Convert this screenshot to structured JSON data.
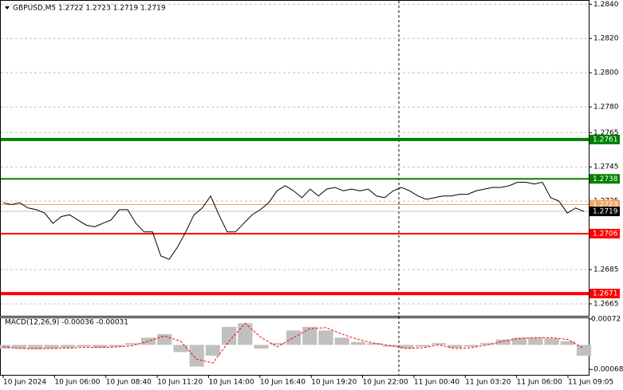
{
  "chart_data": {
    "type": "line",
    "title": "GBPUSD,M5  1.2722 1.2723 1.2719 1.2719",
    "ylim": [
      1.2658,
      1.2842
    ],
    "yticks": [
      {
        "value": 1.284,
        "label": "1.2840"
      },
      {
        "value": 1.282,
        "label": "1.2820"
      },
      {
        "value": 1.28,
        "label": "1.2800"
      },
      {
        "value": 1.278,
        "label": "1.2780"
      },
      {
        "value": 1.2765,
        "label": "1.2765"
      },
      {
        "value": 1.2745,
        "label": "1.2745"
      },
      {
        "value": 1.2725,
        "label": "1.2725"
      },
      {
        "value": 1.2685,
        "label": "1.2685"
      },
      {
        "value": 1.2665,
        "label": "1.2665"
      }
    ],
    "grid": true,
    "xlabels": [
      "10 Jun 2024",
      "10 Jun 06:00",
      "10 Jun 08:40",
      "10 Jun 11:20",
      "10 Jun 14:00",
      "10 Jun 16:40",
      "10 Jun 19:20",
      "10 Jun 22:00",
      "11 Jun 00:40",
      "11 Jun 03:20",
      "11 Jun 06:00",
      "11 Jun 09:05"
    ],
    "series": [
      {
        "name": "GBPUSD",
        "color": "#000000",
        "values": [
          1.2724,
          1.2723,
          1.2724,
          1.2721,
          1.272,
          1.2718,
          1.2712,
          1.2716,
          1.2717,
          1.2714,
          1.2711,
          1.271,
          1.2712,
          1.2714,
          1.272,
          1.272,
          1.2712,
          1.2707,
          1.2707,
          1.2693,
          1.2691,
          1.2698,
          1.2707,
          1.2717,
          1.2721,
          1.2728,
          1.2717,
          1.2707,
          1.2707,
          1.2712,
          1.2717,
          1.272,
          1.2724,
          1.2731,
          1.2734,
          1.2731,
          1.2727,
          1.2732,
          1.2728,
          1.2732,
          1.2733,
          1.2731,
          1.2732,
          1.2731,
          1.2732,
          1.2728,
          1.2727,
          1.2731,
          1.2733,
          1.2731,
          1.2728,
          1.2726,
          1.2727,
          1.2728,
          1.2728,
          1.2729,
          1.2729,
          1.2731,
          1.2732,
          1.2733,
          1.2733,
          1.2734,
          1.2736,
          1.2736,
          1.2735,
          1.2736,
          1.2727,
          1.2725,
          1.2718,
          1.2721,
          1.2719
        ]
      }
    ],
    "levels": [
      {
        "value": 1.2761,
        "color": "#008000",
        "width": 4
      },
      {
        "value": 1.2738,
        "color": "#008000",
        "width": 2
      },
      {
        "value": 1.2723,
        "color": "#f4a460",
        "width": 1
      },
      {
        "value": 1.2719,
        "color": "#c0c0c0",
        "width": 1
      },
      {
        "value": 1.2706,
        "color": "#ff0000",
        "width": 2
      },
      {
        "value": 1.2671,
        "color": "#ff0000",
        "width": 4
      }
    ],
    "macd": {
      "label": "MACD(12,26,9) -0.00036 -0.00031",
      "y2lim": [
        -0.00083,
        0.00074
      ],
      "y2ticks": [
        0.00072,
        -0.00068
      ],
      "histogram": {
        "color": "#c0c0c0",
        "values": [
          -0.0001,
          -0.0001,
          -0.00012,
          -0.0001,
          -8e-05,
          -5e-05,
          -8e-05,
          -5e-05,
          5e-05,
          0.0002,
          0.0003,
          -0.0002,
          -0.0006,
          -0.0003,
          0.0005,
          0.0006,
          -0.0001,
          5e-05,
          0.0004,
          0.0005,
          0.0004,
          0.0002,
          8e-05,
          5e-05,
          -5e-05,
          -0.0001,
          -5e-05,
          5e-05,
          -8e-05,
          -5e-05,
          5e-05,
          0.00015,
          0.0002,
          0.0002,
          0.00018,
          0.0001,
          -0.0003
        ]
      },
      "signal": {
        "color": "#ff0000",
        "values": [
          -5e-05,
          -0.0001,
          -0.0001,
          -0.0001,
          -9e-05,
          -7e-05,
          -7e-05,
          -6e-05,
          -2e-05,
          0.0001,
          0.00025,
          0.0001,
          -0.0004,
          -0.0005,
          0.0001,
          0.0006,
          0.0002,
          -5e-05,
          0.0002,
          0.00045,
          0.00048,
          0.0003,
          0.00015,
          5e-05,
          -2e-05,
          -0.0001,
          -8e-05,
          0,
          -0.0001,
          -8e-05,
          0,
          0.0001,
          0.00018,
          0.0002,
          0.0002,
          0.00015,
          -0.0001
        ]
      }
    }
  }
}
